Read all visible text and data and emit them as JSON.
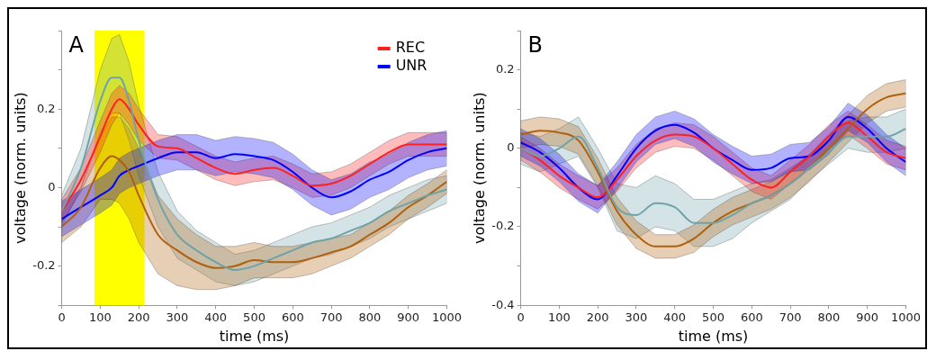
{
  "chart_data": [
    {
      "type": "line",
      "title": "A",
      "xlabel": "time (ms)",
      "ylabel": "voltage (norm. units)",
      "xlim": [
        0,
        1000
      ],
      "xticks": [
        0,
        100,
        200,
        300,
        400,
        500,
        600,
        700,
        800,
        900,
        1000
      ],
      "ylim": [
        -0.3,
        0.4
      ],
      "yticks": [
        {
          "value": -0.3,
          "label": null
        },
        -0.2,
        {
          "value": -0.1,
          "label": null
        },
        0,
        {
          "value": 0.1,
          "label": null
        },
        0.2,
        {
          "value": 0.3,
          "label": null
        },
        {
          "value": 0.4,
          "label": null
        }
      ],
      "legend": "top right",
      "marker": "none",
      "bands": [
        {
          "axis": "x",
          "from": 85,
          "to": 215,
          "color": "#ffff00"
        }
      ],
      "x": [
        0,
        50,
        100,
        130,
        150,
        175,
        200,
        250,
        300,
        350,
        400,
        450,
        500,
        550,
        600,
        650,
        700,
        750,
        800,
        850,
        900,
        950,
        1000
      ],
      "series": [
        {
          "color": "#6fa3a8",
          "values": [
            -0.06,
            0.05,
            0.22,
            0.28,
            0.28,
            0.22,
            0.12,
            -0.03,
            -0.12,
            -0.16,
            -0.19,
            -0.21,
            -0.2,
            -0.18,
            -0.16,
            -0.14,
            -0.13,
            -0.11,
            -0.09,
            -0.06,
            -0.04,
            -0.02,
            -0.005
          ],
          "lower": [
            -0.1,
            0.0,
            0.14,
            0.19,
            0.19,
            0.12,
            0.03,
            -0.1,
            -0.18,
            -0.21,
            -0.24,
            -0.25,
            -0.24,
            -0.22,
            -0.2,
            -0.18,
            -0.17,
            -0.15,
            -0.13,
            -0.1,
            -0.08,
            -0.06,
            -0.04
          ],
          "upper": [
            -0.02,
            0.1,
            0.3,
            0.38,
            0.39,
            0.32,
            0.21,
            0.04,
            -0.06,
            -0.11,
            -0.14,
            -0.17,
            -0.16,
            -0.14,
            -0.12,
            -0.1,
            -0.09,
            -0.07,
            -0.05,
            -0.02,
            0.0,
            0.02,
            0.03
          ]
        },
        {
          "color": "#b0600c",
          "values": [
            -0.1,
            -0.05,
            0.05,
            0.08,
            0.07,
            0.04,
            -0.02,
            -0.12,
            -0.16,
            -0.19,
            -0.205,
            -0.2,
            -0.185,
            -0.19,
            -0.19,
            -0.18,
            -0.165,
            -0.15,
            -0.12,
            -0.09,
            -0.05,
            -0.02,
            0.015
          ],
          "lower": [
            -0.14,
            -0.1,
            -0.03,
            -0.03,
            -0.04,
            -0.08,
            -0.14,
            -0.22,
            -0.25,
            -0.26,
            -0.26,
            -0.25,
            -0.23,
            -0.23,
            -0.23,
            -0.22,
            -0.2,
            -0.18,
            -0.15,
            -0.12,
            -0.08,
            -0.05,
            -0.015
          ],
          "upper": [
            -0.06,
            0.0,
            0.13,
            0.18,
            0.18,
            0.15,
            0.1,
            -0.02,
            -0.08,
            -0.12,
            -0.15,
            -0.15,
            -0.14,
            -0.15,
            -0.15,
            -0.14,
            -0.13,
            -0.12,
            -0.09,
            -0.06,
            -0.02,
            0.01,
            0.045
          ]
        },
        {
          "name": "REC",
          "color": "#ff2020",
          "values": [
            -0.06,
            0.02,
            0.13,
            0.2,
            0.225,
            0.2,
            0.16,
            0.105,
            0.1,
            0.075,
            0.05,
            0.035,
            0.045,
            0.05,
            0.03,
            0.005,
            0.01,
            0.03,
            0.06,
            0.09,
            0.11,
            0.11,
            0.11
          ],
          "lower": [
            -0.09,
            -0.01,
            0.09,
            0.16,
            0.19,
            0.16,
            0.12,
            0.075,
            0.07,
            0.045,
            0.02,
            0.005,
            0.015,
            0.02,
            0.0,
            -0.025,
            -0.02,
            0.0,
            0.03,
            0.06,
            0.08,
            0.08,
            0.08
          ],
          "upper": [
            -0.03,
            0.05,
            0.17,
            0.24,
            0.26,
            0.24,
            0.2,
            0.135,
            0.13,
            0.105,
            0.08,
            0.065,
            0.075,
            0.08,
            0.06,
            0.035,
            0.04,
            0.06,
            0.09,
            0.12,
            0.14,
            0.14,
            0.14
          ]
        },
        {
          "name": "UNR",
          "color": "#0000ff",
          "values": [
            -0.08,
            -0.05,
            -0.02,
            0.0,
            0.03,
            0.045,
            0.055,
            0.075,
            0.09,
            0.09,
            0.075,
            0.085,
            0.08,
            0.07,
            0.04,
            0.0,
            -0.025,
            -0.01,
            0.02,
            0.04,
            0.07,
            0.09,
            0.1
          ],
          "lower": [
            -0.125,
            -0.095,
            -0.065,
            -0.045,
            -0.015,
            0.0,
            0.01,
            0.03,
            0.045,
            0.045,
            0.03,
            0.04,
            0.035,
            0.025,
            -0.005,
            -0.045,
            -0.07,
            -0.055,
            -0.025,
            -0.005,
            0.025,
            0.045,
            0.055
          ],
          "upper": [
            -0.035,
            -0.005,
            0.025,
            0.045,
            0.075,
            0.09,
            0.1,
            0.12,
            0.135,
            0.135,
            0.12,
            0.13,
            0.125,
            0.115,
            0.085,
            0.045,
            0.02,
            0.035,
            0.065,
            0.085,
            0.115,
            0.135,
            0.145
          ]
        }
      ]
    },
    {
      "type": "line",
      "title": "B",
      "xlabel": "time (ms)",
      "ylabel": "voltage (norm. units)",
      "xlim": [
        0,
        1000
      ],
      "xticks": [
        0,
        100,
        200,
        300,
        400,
        500,
        600,
        700,
        800,
        900,
        1000
      ],
      "ylim": [
        -0.4,
        0.3
      ],
      "yticks": [
        -0.4,
        {
          "value": -0.3,
          "label": null
        },
        -0.2,
        {
          "value": -0.1,
          "label": null
        },
        0,
        {
          "value": 0.1,
          "label": null
        },
        0.2,
        {
          "value": 0.3,
          "label": null
        }
      ],
      "marker": "none",
      "x": [
        0,
        50,
        100,
        150,
        200,
        250,
        300,
        350,
        400,
        450,
        500,
        550,
        600,
        650,
        700,
        750,
        800,
        850,
        900,
        950,
        1000
      ],
      "series": [
        {
          "color": "#6fa3a8",
          "values": [
            0.0,
            -0.02,
            0.0,
            0.03,
            -0.05,
            -0.15,
            -0.17,
            -0.14,
            -0.15,
            -0.19,
            -0.19,
            -0.17,
            -0.14,
            -0.12,
            -0.09,
            -0.05,
            -0.01,
            0.03,
            0.03,
            0.03,
            0.05
          ],
          "lower": [
            -0.04,
            -0.06,
            -0.04,
            -0.02,
            -0.1,
            -0.21,
            -0.23,
            -0.2,
            -0.21,
            -0.25,
            -0.25,
            -0.23,
            -0.19,
            -0.16,
            -0.13,
            -0.08,
            -0.04,
            0.0,
            -0.01,
            -0.01,
            0.0
          ],
          "upper": [
            0.04,
            0.03,
            0.05,
            0.08,
            0.0,
            -0.09,
            -0.1,
            -0.07,
            -0.09,
            -0.13,
            -0.13,
            -0.11,
            -0.09,
            -0.08,
            -0.05,
            -0.02,
            0.02,
            0.07,
            0.08,
            0.08,
            0.1
          ]
        },
        {
          "color": "#b0600c",
          "values": [
            0.035,
            0.045,
            0.04,
            0.02,
            -0.06,
            -0.16,
            -0.22,
            -0.25,
            -0.25,
            -0.23,
            -0.19,
            -0.16,
            -0.14,
            -0.12,
            -0.09,
            -0.05,
            0.0,
            0.05,
            0.1,
            0.13,
            0.14
          ],
          "lower": [
            0.0,
            0.01,
            0.005,
            -0.015,
            -0.095,
            -0.195,
            -0.255,
            -0.28,
            -0.28,
            -0.265,
            -0.225,
            -0.195,
            -0.175,
            -0.155,
            -0.125,
            -0.085,
            -0.035,
            0.015,
            0.065,
            0.095,
            0.105
          ],
          "upper": [
            0.07,
            0.08,
            0.075,
            0.055,
            -0.025,
            -0.125,
            -0.185,
            -0.22,
            -0.22,
            -0.195,
            -0.155,
            -0.125,
            -0.105,
            -0.085,
            -0.055,
            -0.015,
            0.035,
            0.085,
            0.135,
            0.165,
            0.175
          ]
        },
        {
          "color": "#ff2020",
          "values": [
            0.0,
            -0.03,
            -0.07,
            -0.1,
            -0.125,
            -0.08,
            -0.02,
            0.02,
            0.035,
            0.03,
            0.0,
            -0.04,
            -0.08,
            -0.1,
            -0.06,
            -0.02,
            0.03,
            0.065,
            0.03,
            -0.01,
            -0.025
          ],
          "lower": [
            -0.03,
            -0.06,
            -0.1,
            -0.13,
            -0.155,
            -0.11,
            -0.05,
            -0.01,
            0.005,
            0.0,
            -0.03,
            -0.07,
            -0.11,
            -0.13,
            -0.09,
            -0.05,
            0.0,
            0.035,
            0.0,
            -0.04,
            -0.055
          ],
          "upper": [
            0.03,
            0.0,
            -0.04,
            -0.07,
            -0.095,
            -0.05,
            0.01,
            0.05,
            0.065,
            0.06,
            0.03,
            -0.01,
            -0.05,
            -0.07,
            -0.03,
            0.01,
            0.06,
            0.095,
            0.06,
            0.02,
            0.005
          ]
        },
        {
          "color": "#0000ff",
          "values": [
            0.015,
            -0.01,
            -0.05,
            -0.1,
            -0.13,
            -0.07,
            0.0,
            0.045,
            0.06,
            0.04,
            0.0,
            -0.03,
            -0.055,
            -0.05,
            -0.025,
            -0.02,
            0.02,
            0.08,
            0.05,
            0.0,
            -0.035
          ],
          "lower": [
            -0.02,
            -0.045,
            -0.085,
            -0.135,
            -0.165,
            -0.105,
            -0.035,
            0.01,
            0.025,
            0.005,
            -0.035,
            -0.065,
            -0.09,
            -0.085,
            -0.06,
            -0.055,
            -0.015,
            0.045,
            0.015,
            -0.035,
            -0.07
          ],
          "upper": [
            0.05,
            0.025,
            -0.015,
            -0.065,
            -0.095,
            -0.035,
            0.035,
            0.08,
            0.095,
            0.075,
            0.035,
            0.005,
            -0.02,
            -0.015,
            0.01,
            0.015,
            0.055,
            0.115,
            0.085,
            0.035,
            0.0
          ]
        }
      ]
    }
  ]
}
